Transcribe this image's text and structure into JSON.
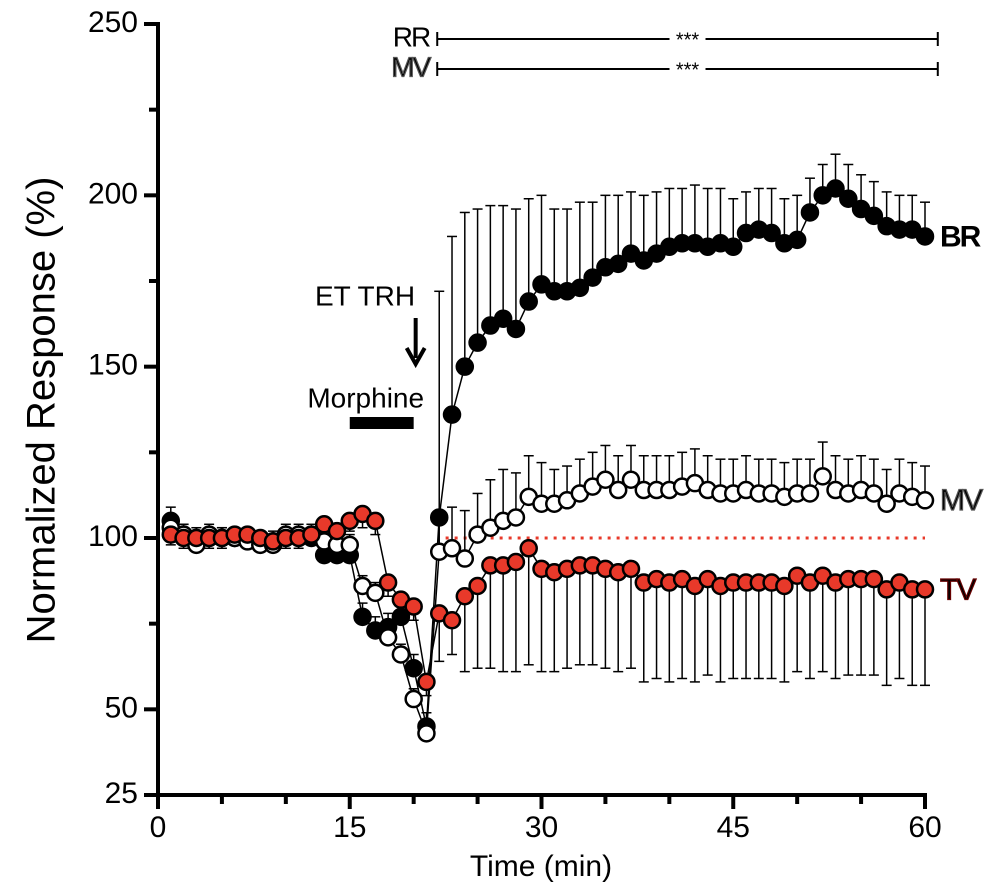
{
  "chart_data": {
    "type": "line",
    "xlabel": "Time (min)",
    "ylabel": "Normalized Response (%)",
    "xlim": [
      0,
      60
    ],
    "xticks": [
      0,
      15,
      30,
      45,
      60
    ],
    "xminorticks": [
      5,
      10,
      20,
      25,
      35,
      40,
      50,
      55
    ],
    "ylim": [
      25,
      250
    ],
    "yticks": [
      25,
      50,
      100,
      150,
      200,
      250
    ],
    "yminorticks": [
      75,
      125,
      175,
      225
    ],
    "x": [
      1,
      2,
      3,
      4,
      5,
      6,
      7,
      8,
      9,
      10,
      11,
      12,
      13,
      14,
      15,
      16,
      17,
      18,
      19,
      20,
      21,
      22,
      23,
      24,
      25,
      26,
      27,
      28,
      29,
      30,
      31,
      32,
      33,
      34,
      35,
      36,
      37,
      38,
      39,
      40,
      41,
      42,
      43,
      44,
      45,
      46,
      47,
      48,
      49,
      50,
      51,
      52,
      53,
      54,
      55,
      56,
      57,
      58,
      59,
      60
    ],
    "series": [
      {
        "name": "BR",
        "color": "#000000",
        "label_color": "#000000",
        "error_direction": "up",
        "values": [
          105,
          101,
          100,
          100,
          100,
          100,
          100,
          99,
          99,
          100,
          100,
          100,
          95,
          95,
          95,
          77,
          73,
          74,
          77,
          62,
          45,
          106,
          136,
          150,
          157,
          162,
          164,
          161,
          169,
          174,
          172,
          172,
          173,
          176,
          179,
          180,
          183,
          181,
          183,
          185,
          186,
          186,
          185,
          186,
          185,
          189,
          190,
          189,
          186,
          187,
          195,
          200,
          202,
          199,
          196,
          194,
          191,
          190,
          190,
          188
        ],
        "errors": [
          4,
          3,
          3,
          3,
          3,
          3,
          3,
          3,
          3,
          3,
          3,
          3,
          3,
          3,
          3,
          4,
          4,
          4,
          4,
          4,
          4,
          66,
          52,
          45,
          39,
          35,
          33,
          35,
          30,
          26,
          24,
          24,
          25,
          22,
          21,
          20,
          18,
          19,
          18,
          17,
          16,
          17,
          17,
          16,
          14,
          12,
          12,
          13,
          13,
          13,
          10,
          9,
          10,
          10,
          10,
          10,
          10,
          10,
          10,
          10
        ]
      },
      {
        "name": "MV",
        "color": "#ffffff",
        "label_color": "#ffffff",
        "error_direction": "up",
        "values": [
          103,
          101,
          98,
          101,
          100,
          100,
          99,
          98,
          98,
          101,
          101,
          101,
          99,
          98,
          98,
          86,
          84,
          71,
          66,
          53,
          43,
          96,
          97,
          94,
          101,
          103,
          105,
          106,
          112,
          110,
          110,
          111,
          113,
          115,
          117,
          114,
          117,
          114,
          114,
          114,
          115,
          116,
          114,
          113,
          113,
          114,
          113,
          113,
          112,
          113,
          113,
          118,
          114,
          113,
          114,
          113,
          110,
          113,
          112,
          111
        ],
        "errors": [
          3,
          3,
          3,
          3,
          3,
          3,
          3,
          3,
          3,
          3,
          3,
          3,
          3,
          3,
          3,
          3,
          3,
          3,
          3,
          3,
          3,
          8,
          12,
          14,
          12,
          14,
          15,
          13,
          12,
          12,
          10,
          10,
          10,
          10,
          10,
          10,
          10,
          10,
          10,
          10,
          10,
          10,
          10,
          10,
          10,
          10,
          10,
          10,
          10,
          10,
          10,
          10,
          10,
          10,
          10,
          10,
          10,
          10,
          10,
          10
        ]
      },
      {
        "name": "TV",
        "color": "#e8392a",
        "label_color": "#e8392a",
        "error_direction": "down",
        "values": [
          101,
          100,
          100,
          100,
          100,
          101,
          101,
          100,
          99,
          100,
          100,
          101,
          104,
          102,
          105,
          107,
          105,
          87,
          82,
          80,
          58,
          78,
          76,
          83,
          86,
          92,
          92,
          93,
          97,
          91,
          90,
          91,
          92,
          92,
          91,
          90,
          91,
          87,
          88,
          87,
          88,
          86,
          88,
          86,
          87,
          87,
          87,
          87,
          86,
          89,
          87,
          89,
          87,
          88,
          88,
          88,
          85,
          87,
          85,
          85
        ],
        "errors": [
          3,
          3,
          3,
          3,
          3,
          3,
          3,
          3,
          3,
          3,
          3,
          3,
          3,
          3,
          3,
          4,
          4,
          4,
          4,
          4,
          4,
          14,
          10,
          22,
          24,
          30,
          31,
          32,
          34,
          30,
          29,
          29,
          29,
          29,
          29,
          29,
          29,
          29,
          29,
          29,
          29,
          28,
          28,
          28,
          28,
          28,
          28,
          28,
          28,
          28,
          28,
          28,
          28,
          28,
          28,
          28,
          28,
          28,
          28,
          28
        ]
      }
    ],
    "reference_line": {
      "y": 100,
      "color": "#e8392a"
    },
    "sig_bars": [
      {
        "label": "RR",
        "text": "***",
        "x": [
          22,
          61
        ],
        "color": "#000000"
      },
      {
        "label": "MV",
        "text": "***",
        "x": [
          22,
          61
        ],
        "color": "#ffffff"
      }
    ],
    "morphine": {
      "label": "Morphine",
      "x": [
        15,
        20
      ]
    },
    "arrow": {
      "label": "ET TRH",
      "x": 20
    }
  }
}
